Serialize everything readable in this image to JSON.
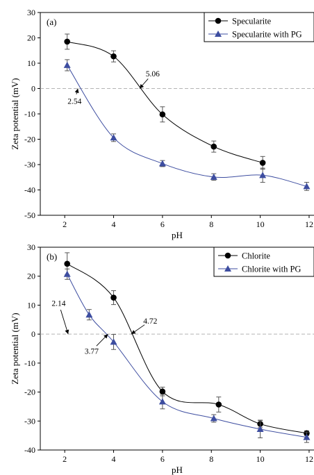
{
  "chart_data": [
    {
      "type": "line",
      "panel_label": "(a)",
      "xlabel": "pH",
      "ylabel": "Zeta potential (mV)",
      "xlim": [
        1,
        12.2
      ],
      "ylim": [
        -50,
        30
      ],
      "xticks": [
        2,
        4,
        6,
        8,
        10,
        12
      ],
      "yticks": [
        -50,
        -40,
        -30,
        -20,
        -10,
        0,
        10,
        20,
        30
      ],
      "zero_reference_line": true,
      "grid": false,
      "legend_position": "top-right",
      "series": [
        {
          "name": "Specularite",
          "marker": "circle",
          "color": "#000000",
          "x": [
            2.1,
            4.0,
            6.0,
            8.1,
            10.1
          ],
          "y": [
            18.5,
            12.7,
            -10.2,
            -22.9,
            -29.3
          ],
          "err": [
            3.0,
            2.2,
            3.0,
            2.2,
            2.5
          ]
        },
        {
          "name": "Specularite with PG",
          "marker": "triangle",
          "color": "#3d4da0",
          "x": [
            2.1,
            4.0,
            6.0,
            8.1,
            10.1,
            11.9
          ],
          "y": [
            9.2,
            -19.4,
            -29.6,
            -34.9,
            -34.2,
            -38.6
          ],
          "err": [
            2.2,
            1.5,
            1.2,
            1.3,
            2.8,
            1.6
          ]
        }
      ],
      "annotations": [
        {
          "text": "5.06",
          "x": 5.06,
          "y": 0,
          "text_x": 5.6,
          "text_y": 5.9
        },
        {
          "text": "2.54",
          "x": 2.54,
          "y": 0,
          "text_x": 2.4,
          "text_y": -4.9
        }
      ]
    },
    {
      "type": "line",
      "panel_label": "(b)",
      "xlabel": "pH",
      "ylabel": "Zeta potential (mV)",
      "xlim": [
        1,
        12.2
      ],
      "ylim": [
        -40,
        30
      ],
      "xticks": [
        2,
        4,
        6,
        8,
        10,
        12
      ],
      "yticks": [
        -40,
        -30,
        -20,
        -10,
        0,
        10,
        20,
        30
      ],
      "zero_reference_line": true,
      "grid": false,
      "legend_position": "top-right",
      "series": [
        {
          "name": "Chlorite",
          "marker": "circle",
          "color": "#000000",
          "x": [
            2.1,
            4.0,
            6.0,
            8.3,
            10.0,
            11.9
          ],
          "y": [
            24.3,
            12.6,
            -19.8,
            -24.3,
            -31.0,
            -34.2
          ],
          "err": [
            3.8,
            2.4,
            1.5,
            2.6,
            1.3,
            0.8
          ]
        },
        {
          "name": "Chlorite with PG",
          "marker": "triangle",
          "color": "#3d4da0",
          "x": [
            2.1,
            3.0,
            4.0,
            6.0,
            8.1,
            10.0,
            11.9
          ],
          "y": [
            20.7,
            6.7,
            -2.7,
            -23.3,
            -29.1,
            -32.8,
            -35.6
          ],
          "err": [
            1.8,
            1.8,
            2.6,
            2.5,
            1.3,
            3.0,
            1.8
          ]
        }
      ],
      "annotations": [
        {
          "text": "4.72",
          "x": 4.72,
          "y": 0,
          "text_x": 5.5,
          "text_y": 4.6
        },
        {
          "text": "2.14",
          "x": 2.14,
          "y": 0,
          "text_x": 1.75,
          "text_y": 10.7
        },
        {
          "text": "3.77",
          "x": 3.77,
          "y": 0,
          "text_x": 3.1,
          "text_y": -5.8
        }
      ]
    }
  ]
}
